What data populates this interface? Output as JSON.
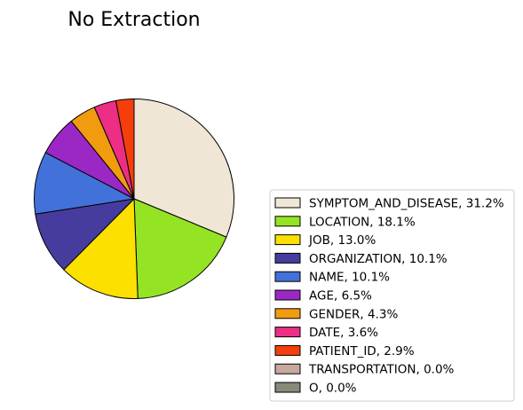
{
  "chart_data": {
    "type": "pie",
    "title": "No Extraction",
    "start_angle_deg": 90,
    "direction": "clockwise",
    "slices": [
      {
        "label": "SYMPTOM_AND_DISEASE",
        "value": 31.2,
        "color": "#F0E6D6"
      },
      {
        "label": "LOCATION",
        "value": 18.1,
        "color": "#95E423"
      },
      {
        "label": "JOB",
        "value": 13.0,
        "color": "#FBE000"
      },
      {
        "label": "ORGANIZATION",
        "value": 10.1,
        "color": "#463C9E"
      },
      {
        "label": "NAME",
        "value": 10.1,
        "color": "#4272D9"
      },
      {
        "label": "AGE",
        "value": 6.5,
        "color": "#9B28C4"
      },
      {
        "label": "GENDER",
        "value": 4.3,
        "color": "#F09C0E"
      },
      {
        "label": "DATE",
        "value": 3.6,
        "color": "#EC2E85"
      },
      {
        "label": "PATIENT_ID",
        "value": 2.9,
        "color": "#F43F0C"
      },
      {
        "label": "TRANSPORTATION",
        "value": 0.0,
        "color": "#C8A89E"
      },
      {
        "label": "O",
        "value": 0.0,
        "color": "#878A78"
      }
    ],
    "legend_labels": [
      "SYMPTOM_AND_DISEASE, 31.2%",
      "LOCATION, 18.1%",
      "JOB, 13.0%",
      "ORGANIZATION, 10.1%",
      "NAME, 10.1%",
      "AGE, 6.5%",
      "GENDER, 4.3%",
      "DATE, 3.6%",
      "PATIENT_ID, 2.9%",
      "TRANSPORTATION, 0.0%",
      "O, 0.0%"
    ],
    "legend_position": "lower-right"
  }
}
